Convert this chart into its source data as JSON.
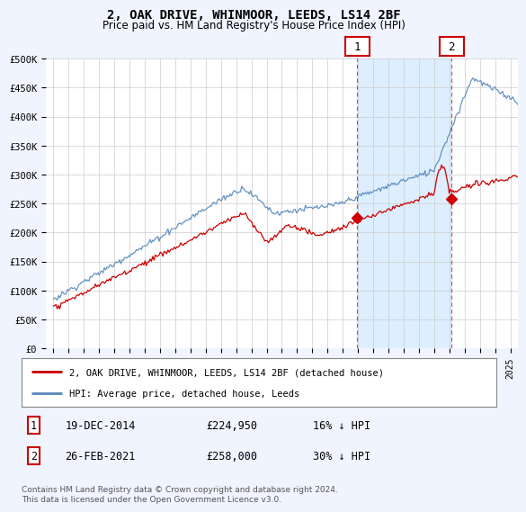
{
  "title": "2, OAK DRIVE, WHINMOOR, LEEDS, LS14 2BF",
  "subtitle": "Price paid vs. HM Land Registry's House Price Index (HPI)",
  "ylabel_ticks": [
    "£0",
    "£50K",
    "£100K",
    "£150K",
    "£200K",
    "£250K",
    "£300K",
    "£350K",
    "£400K",
    "£450K",
    "£500K"
  ],
  "ytick_values": [
    0,
    50000,
    100000,
    150000,
    200000,
    250000,
    300000,
    350000,
    400000,
    450000,
    500000
  ],
  "ylim": [
    0,
    500000
  ],
  "xlim_start": 1994.5,
  "xlim_end": 2025.5,
  "hpi_color": "#5588bb",
  "price_color": "#cc0000",
  "shade_color": "#ddeeff",
  "legend_hpi_label": "HPI: Average price, detached house, Leeds",
  "legend_price_label": "2, OAK DRIVE, WHINMOOR, LEEDS, LS14 2BF (detached house)",
  "sale1_date": "19-DEC-2014",
  "sale1_price": 224950,
  "sale1_label": "16% ↓ HPI",
  "sale1_year": 2014.96,
  "sale2_date": "26-FEB-2021",
  "sale2_price": 258000,
  "sale2_label": "30% ↓ HPI",
  "sale2_year": 2021.15,
  "footnote": "Contains HM Land Registry data © Crown copyright and database right 2024.\nThis data is licensed under the Open Government Licence v3.0.",
  "background_color": "#f0f4ff",
  "plot_bg_color": "#ffffff"
}
